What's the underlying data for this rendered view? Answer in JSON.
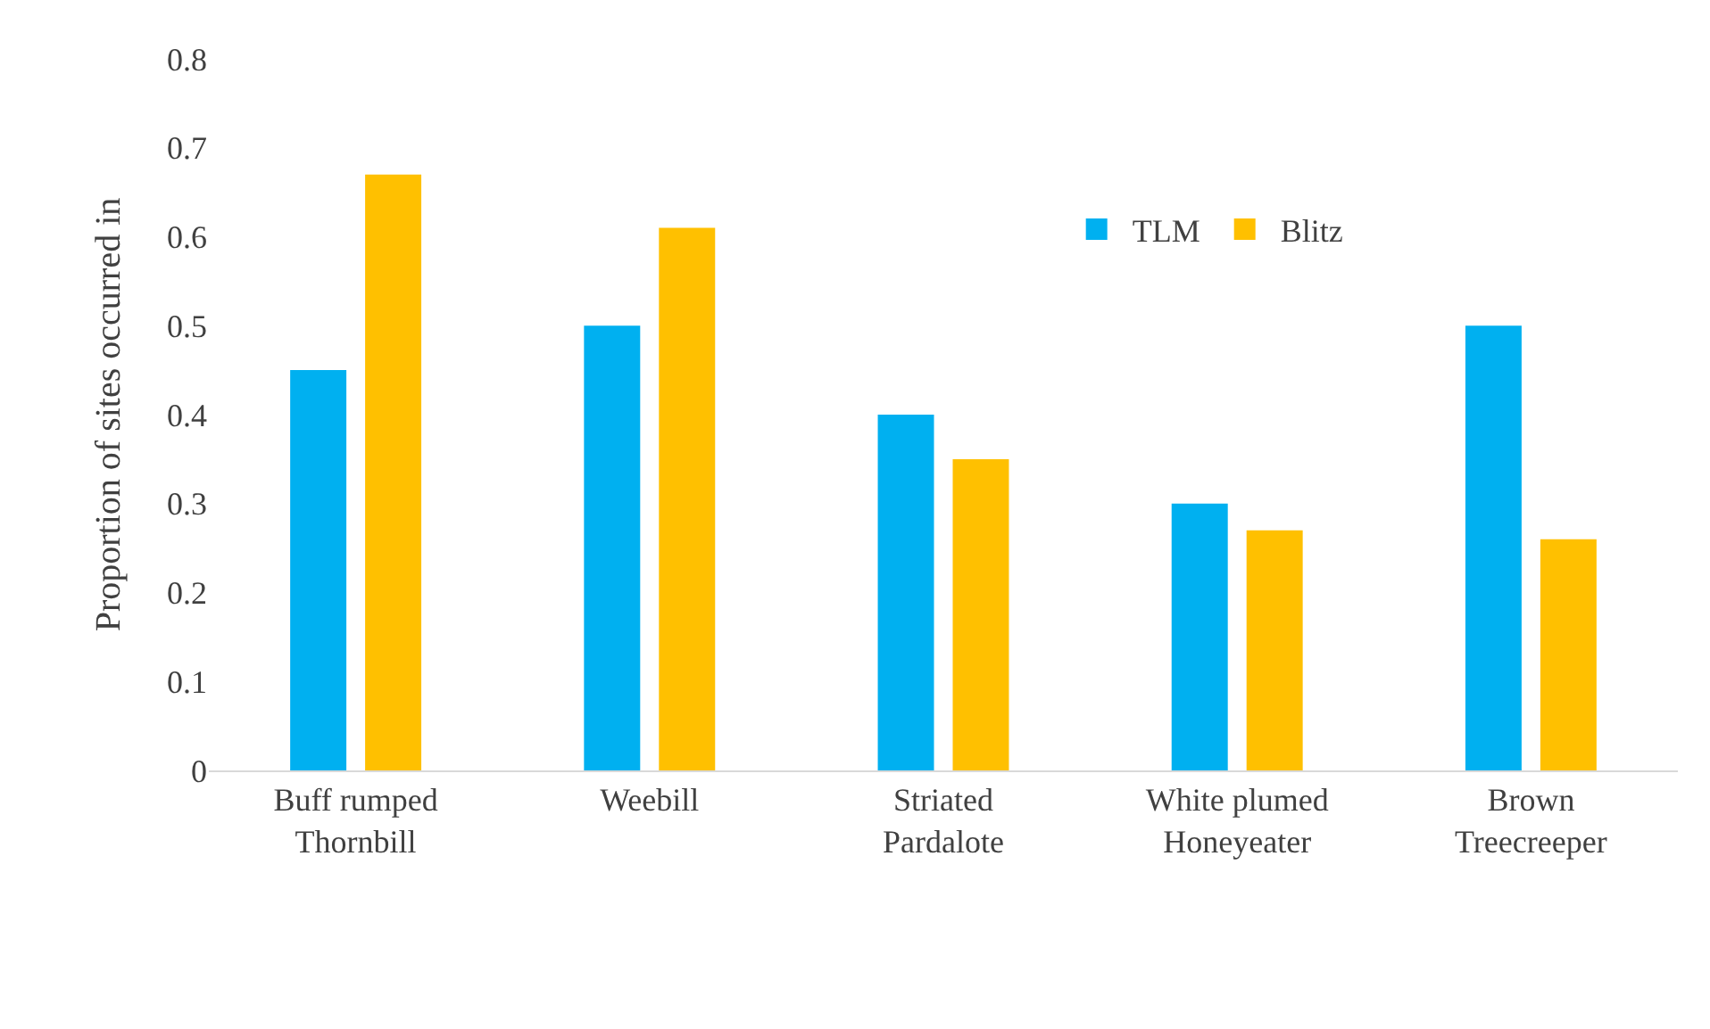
{
  "chart_data": {
    "type": "bar",
    "ylabel": "Proportion of sites occurred in",
    "categories": [
      "Buff rumped\nThornbill",
      "Weebill",
      "Striated\nPardalote",
      "White plumed\nHoneyeater",
      "Brown\nTreecreeper"
    ],
    "series": [
      {
        "name": "TLM",
        "color": "#00b0f0",
        "values": [
          0.45,
          0.5,
          0.4,
          0.3,
          0.5
        ]
      },
      {
        "name": "Blitz",
        "color": "#ffc000",
        "values": [
          0.67,
          0.61,
          0.35,
          0.27,
          0.26
        ]
      }
    ],
    "ylim": [
      0,
      0.8
    ],
    "yticks": [
      0,
      0.1,
      0.2,
      0.3,
      0.4,
      0.5,
      0.6,
      0.7,
      0.8
    ],
    "grid": false,
    "legend": "top right"
  }
}
